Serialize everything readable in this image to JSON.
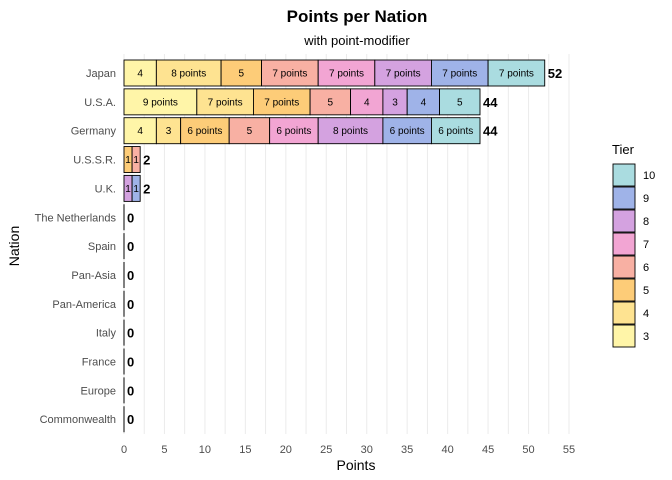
{
  "chart_data": {
    "type": "bar",
    "orientation": "horizontal",
    "stacked": true,
    "title": "Points per Nation",
    "subtitle": "with point-modifier",
    "xlabel": "Points",
    "ylabel": "Nation",
    "xlim": [
      0,
      55
    ],
    "xticks": [
      0,
      5,
      10,
      15,
      20,
      25,
      30,
      35,
      40,
      45,
      50,
      55
    ],
    "grid": true,
    "legend": {
      "title": "Tier",
      "placement": "right",
      "entries": [
        {
          "tier": 10,
          "color": "#aadce0"
        },
        {
          "tier": 9,
          "color": "#9fb3e8"
        },
        {
          "tier": 8,
          "color": "#d4a2e0"
        },
        {
          "tier": 7,
          "color": "#f2a5d3"
        },
        {
          "tier": 6,
          "color": "#f8b0a3"
        },
        {
          "tier": 5,
          "color": "#fdcc78"
        },
        {
          "tier": 4,
          "color": "#fee391"
        },
        {
          "tier": 3,
          "color": "#fff5a8"
        }
      ]
    },
    "categories": [
      "Japan",
      "U.S.A.",
      "Germany",
      "U.S.S.R.",
      "U.K.",
      "The Netherlands",
      "Spain",
      "Pan-Asia",
      "Pan-America",
      "Italy",
      "France",
      "Europe",
      "Commonwealth"
    ],
    "bars": [
      {
        "nation": "Japan",
        "total": "52",
        "segments": [
          {
            "tier": 3,
            "value": 4,
            "label": "4"
          },
          {
            "tier": 4,
            "value": 8,
            "label": "8 points"
          },
          {
            "tier": 5,
            "value": 5,
            "label": "5"
          },
          {
            "tier": 6,
            "value": 7,
            "label": "7 points"
          },
          {
            "tier": 7,
            "value": 7,
            "label": "7 points"
          },
          {
            "tier": 8,
            "value": 7,
            "label": "7 points"
          },
          {
            "tier": 9,
            "value": 7,
            "label": "7 points"
          },
          {
            "tier": 10,
            "value": 7,
            "label": "7 points"
          }
        ]
      },
      {
        "nation": "U.S.A.",
        "total": "44",
        "segments": [
          {
            "tier": 3,
            "value": 9,
            "label": "9 points"
          },
          {
            "tier": 4,
            "value": 7,
            "label": "7 points"
          },
          {
            "tier": 5,
            "value": 7,
            "label": "7 points"
          },
          {
            "tier": 6,
            "value": 5,
            "label": "5"
          },
          {
            "tier": 7,
            "value": 4,
            "label": "4"
          },
          {
            "tier": 8,
            "value": 3,
            "label": "3"
          },
          {
            "tier": 9,
            "value": 4,
            "label": "4"
          },
          {
            "tier": 10,
            "value": 5,
            "label": "5"
          }
        ]
      },
      {
        "nation": "Germany",
        "total": "44",
        "segments": [
          {
            "tier": 3,
            "value": 4,
            "label": "4"
          },
          {
            "tier": 4,
            "value": 3,
            "label": "3"
          },
          {
            "tier": 5,
            "value": 6,
            "label": "6 points"
          },
          {
            "tier": 6,
            "value": 5,
            "label": "5"
          },
          {
            "tier": 7,
            "value": 6,
            "label": "6 points"
          },
          {
            "tier": 8,
            "value": 8,
            "label": "8 points"
          },
          {
            "tier": 9,
            "value": 6,
            "label": "6 points"
          },
          {
            "tier": 10,
            "value": 6,
            "label": "6 points"
          }
        ]
      },
      {
        "nation": "U.S.S.R.",
        "total": "2",
        "segments": [
          {
            "tier": 5,
            "value": 1,
            "label": "1"
          },
          {
            "tier": 6,
            "value": 1,
            "label": "1"
          }
        ]
      },
      {
        "nation": "U.K.",
        "total": "2",
        "segments": [
          {
            "tier": 8,
            "value": 1,
            "label": "1"
          },
          {
            "tier": 9,
            "value": 1,
            "label": "1"
          }
        ]
      },
      {
        "nation": "The Netherlands",
        "total": "0",
        "segments": []
      },
      {
        "nation": "Spain",
        "total": "0",
        "segments": []
      },
      {
        "nation": "Pan-Asia",
        "total": "0",
        "segments": []
      },
      {
        "nation": "Pan-America",
        "total": "0",
        "segments": []
      },
      {
        "nation": "Italy",
        "total": "0",
        "segments": []
      },
      {
        "nation": "France",
        "total": "0",
        "segments": []
      },
      {
        "nation": "Europe",
        "total": "0",
        "segments": []
      },
      {
        "nation": "Commonwealth",
        "total": "0",
        "segments": []
      }
    ]
  }
}
